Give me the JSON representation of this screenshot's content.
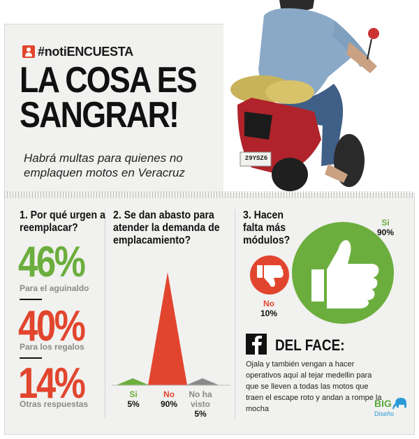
{
  "header": {
    "hashtag": "#notiENCUESTA",
    "title_line1": "LA COSA ES",
    "title_line2": "SANGRAR!",
    "subtitle": "Habrá multas para quienes no emplaquen motos en Veracruz"
  },
  "photo": {
    "plate": "29YSZ6"
  },
  "q1": {
    "question": "1. Por qué urgen a reemplacar?",
    "items": [
      {
        "pct": "46%",
        "label": "Para el aguinaldo",
        "color": "#6cae3e"
      },
      {
        "pct": "40%",
        "label": "Para los regalos",
        "color": "#e2452e"
      },
      {
        "pct": "14%",
        "label": "Otras respuestas",
        "color": "#e2452e"
      }
    ]
  },
  "q2": {
    "question": "2. Se dan abasto para atender la demanda de emplacamiento?",
    "labels": [
      {
        "name": "Si",
        "pct": "5%",
        "color": "#6cae3e"
      },
      {
        "name": "No",
        "pct": "90%",
        "color": "#e2452e"
      },
      {
        "name": "No ha visto",
        "pct": "5%",
        "color": "#8a8a8a"
      }
    ]
  },
  "q3": {
    "question": "3. Hacen falta más módulos?",
    "yes": {
      "name": "Si",
      "pct": "90%",
      "color": "#6cae3e"
    },
    "no": {
      "name": "No",
      "pct": "10%",
      "color": "#e2452e"
    }
  },
  "face": {
    "title": "DEL FACE:",
    "text": "Ojala y también vengan a hacer operativos aquí al tejar medellin para que se lleven a todas las motos que traen el escape roto y andan a rompe la mocha"
  },
  "logo": {
    "big": "BIG",
    "sub": "Diseño"
  },
  "chart_data": {
    "type": "area",
    "categories": [
      "Si",
      "No",
      "No ha visto"
    ],
    "values": [
      5,
      90,
      5
    ],
    "ylim": [
      0,
      100
    ]
  },
  "colors": {
    "green": "#6cae3e",
    "red": "#e2452e",
    "gray": "#8a8a8a"
  }
}
